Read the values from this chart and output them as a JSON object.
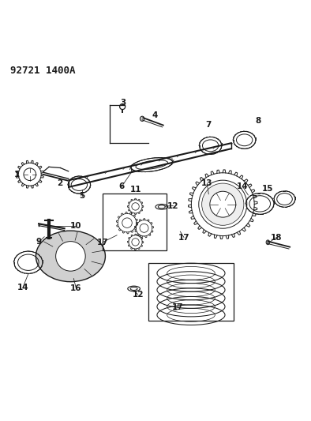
{
  "title": "92721 1400A",
  "bg_color": "#ffffff",
  "line_color": "#1a1a1a",
  "figsize": [
    3.94,
    5.33
  ],
  "dpi": 100
}
